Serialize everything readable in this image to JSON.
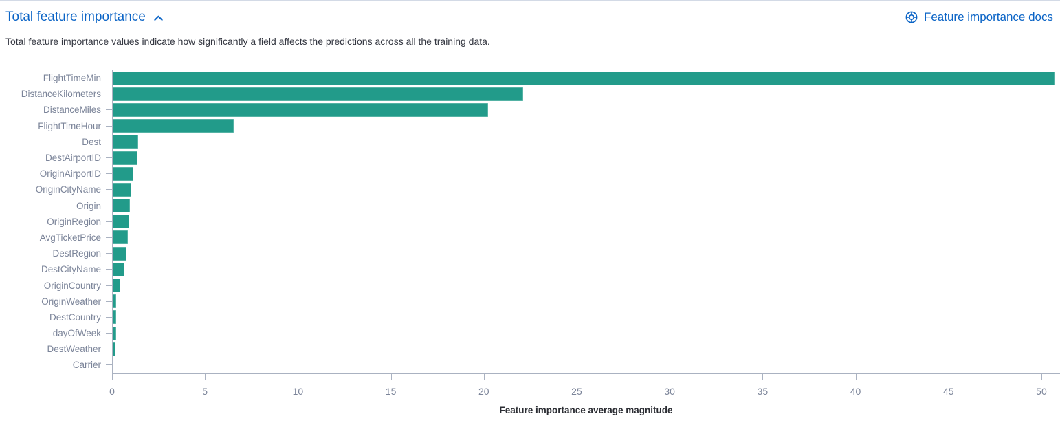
{
  "header": {
    "title": "Total feature importance",
    "collapse_icon": "chevron-up",
    "docs_label": "Feature importance docs",
    "docs_icon": "documentation-life-buoy",
    "accent_color": "#0b64c6"
  },
  "description": {
    "text": "Total feature importance values indicate how significantly a field affects the predictions across all the training data."
  },
  "chart_data": {
    "type": "bar",
    "orientation": "horizontal",
    "title": "",
    "xlabel": "Feature importance average magnitude",
    "ylabel": "",
    "categories": [
      "FlightTimeMin",
      "DistanceKilometers",
      "DistanceMiles",
      "FlightTimeHour",
      "Dest",
      "DestAirportID",
      "OriginAirportID",
      "OriginCityName",
      "Origin",
      "OriginRegion",
      "AvgTicketPrice",
      "DestRegion",
      "DestCityName",
      "OriginCountry",
      "OriginWeather",
      "DestCountry",
      "dayOfWeek",
      "DestWeather",
      "Carrier"
    ],
    "values": [
      50.7,
      22.1,
      20.2,
      6.5,
      1.37,
      1.32,
      1.1,
      1.0,
      0.93,
      0.88,
      0.82,
      0.74,
      0.63,
      0.41,
      0.19,
      0.18,
      0.17,
      0.14,
      0.05
    ],
    "xlim": [
      0,
      51
    ],
    "xticks": [
      0,
      5,
      10,
      15,
      20,
      25,
      30,
      35,
      40,
      45,
      50
    ],
    "bar_color": "#229b8a",
    "axis_color": "#aab2c1",
    "tick_label_color": "#7b8499",
    "grid": false,
    "legend": "none"
  }
}
